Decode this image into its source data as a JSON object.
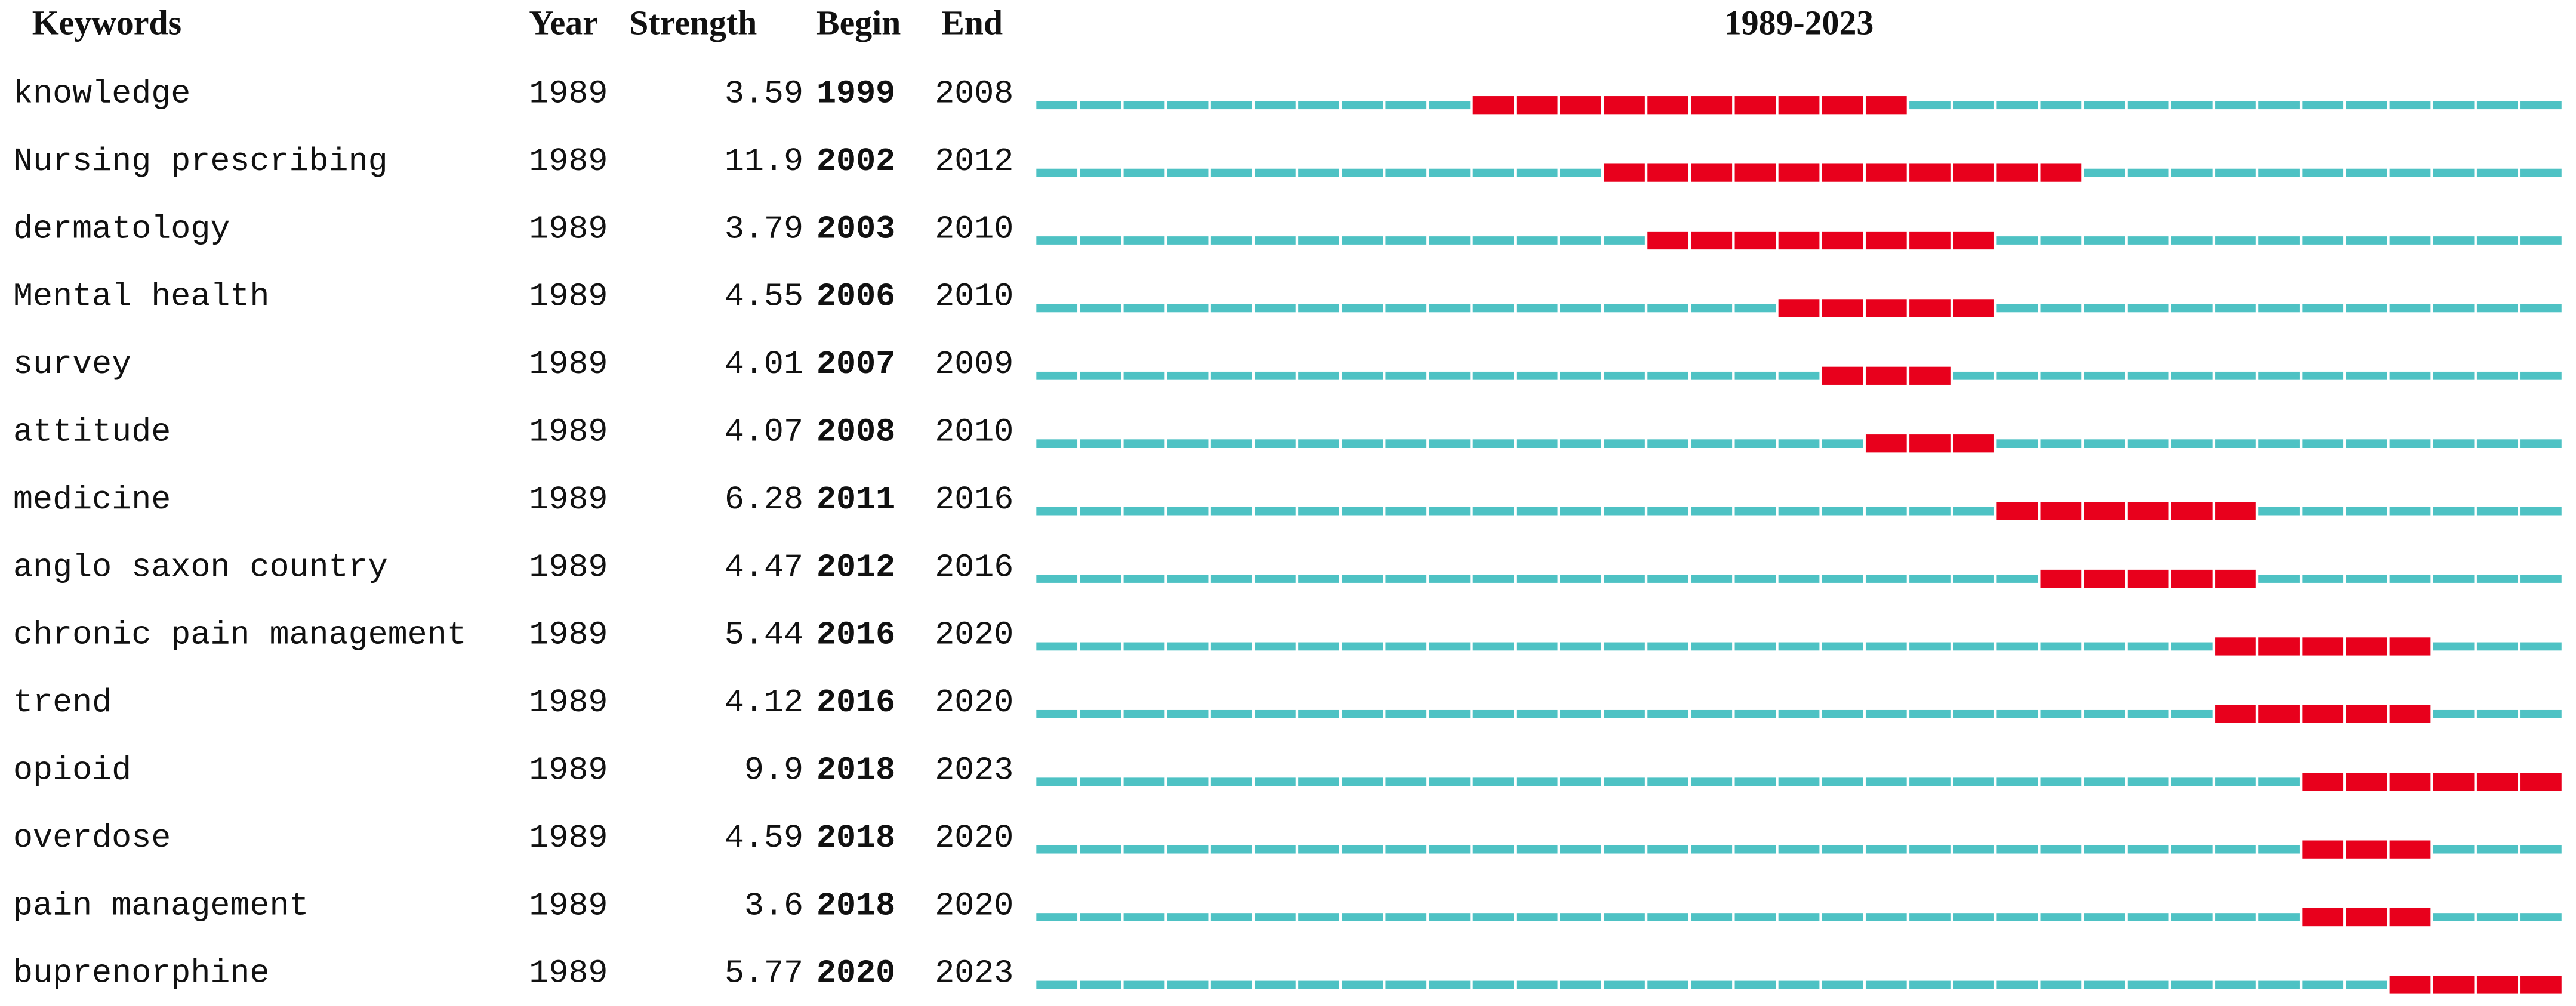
{
  "chart_data": {
    "type": "burst",
    "title": "1989-2023",
    "columns": [
      "Keywords",
      "Year",
      "Strength",
      "Begin",
      "End"
    ],
    "xlim": [
      1989,
      2023
    ],
    "base_color": "#4ec2c4",
    "burst_color": "#e8001c",
    "rows": [
      {
        "keyword": "knowledge",
        "year": 1989,
        "strength": 3.59,
        "begin": 1999,
        "end": 2008
      },
      {
        "keyword": "Nursing prescribing",
        "year": 1989,
        "strength": 11.9,
        "begin": 2002,
        "end": 2012
      },
      {
        "keyword": "dermatology",
        "year": 1989,
        "strength": 3.79,
        "begin": 2003,
        "end": 2010
      },
      {
        "keyword": "Mental health",
        "year": 1989,
        "strength": 4.55,
        "begin": 2006,
        "end": 2010
      },
      {
        "keyword": "survey",
        "year": 1989,
        "strength": 4.01,
        "begin": 2007,
        "end": 2009
      },
      {
        "keyword": "attitude",
        "year": 1989,
        "strength": 4.07,
        "begin": 2008,
        "end": 2010
      },
      {
        "keyword": "medicine",
        "year": 1989,
        "strength": 6.28,
        "begin": 2011,
        "end": 2016
      },
      {
        "keyword": "anglo saxon country",
        "year": 1989,
        "strength": 4.47,
        "begin": 2012,
        "end": 2016
      },
      {
        "keyword": "chronic pain management",
        "year": 1989,
        "strength": 5.44,
        "begin": 2016,
        "end": 2020
      },
      {
        "keyword": "trend",
        "year": 1989,
        "strength": 4.12,
        "begin": 2016,
        "end": 2020
      },
      {
        "keyword": "opioid",
        "year": 1989,
        "strength": 9.9,
        "begin": 2018,
        "end": 2023
      },
      {
        "keyword": "overdose",
        "year": 1989,
        "strength": 4.59,
        "begin": 2018,
        "end": 2020
      },
      {
        "keyword": "pain management",
        "year": 1989,
        "strength": 3.6,
        "begin": 2018,
        "end": 2020
      },
      {
        "keyword": "buprenorphine",
        "year": 1989,
        "strength": 5.77,
        "begin": 2020,
        "end": 2023
      }
    ]
  }
}
